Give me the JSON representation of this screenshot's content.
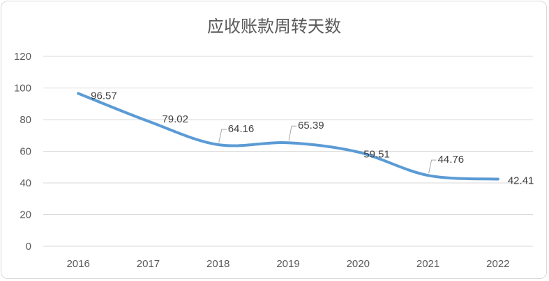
{
  "chart_data": {
    "type": "line",
    "title": "应收账款周转天数",
    "categories": [
      "2016",
      "2017",
      "2018",
      "2019",
      "2020",
      "2021",
      "2022"
    ],
    "series": [
      {
        "values": [
          96.57,
          79.02,
          64.16,
          65.39,
          59.51,
          44.76,
          42.41
        ]
      }
    ],
    "data_labels": [
      "96.57",
      "79.02",
      "64.16",
      "65.39",
      "59.51",
      "44.76",
      "42.41"
    ],
    "y_ticks": [
      "0",
      "20",
      "40",
      "60",
      "80",
      "100",
      "120"
    ],
    "ylim": [
      0,
      120
    ],
    "grid": true,
    "smooth": true,
    "colors": {
      "series": "#5b9bd5",
      "grid": "#d9d9d9",
      "text": "#595959",
      "leader": "#a6a6a6"
    }
  }
}
